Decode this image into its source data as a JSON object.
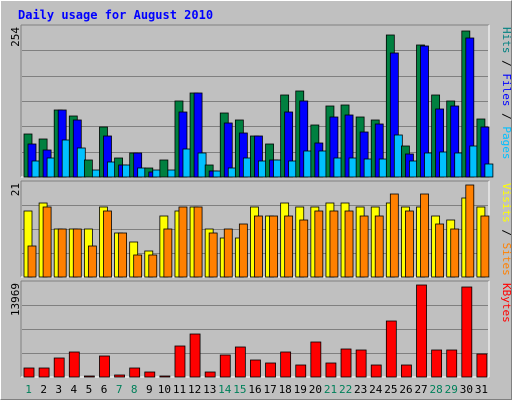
{
  "chart_data": {
    "type": "bar",
    "title": "Daily usage for August 2010",
    "categories": [
      "1",
      "2",
      "3",
      "4",
      "5",
      "6",
      "7",
      "8",
      "9",
      "10",
      "11",
      "12",
      "13",
      "14",
      "15",
      "16",
      "17",
      "18",
      "19",
      "20",
      "21",
      "22",
      "23",
      "24",
      "25",
      "26",
      "27",
      "28",
      "29",
      "30",
      "31"
    ],
    "weekend_days": [
      "1",
      "7",
      "8",
      "14",
      "15",
      "21",
      "22",
      "28",
      "29"
    ],
    "panels": [
      {
        "id": "hits",
        "ymax_label": "254",
        "ymax": 254,
        "axis_labels": [
          {
            "text": "Hits",
            "color": "#008080"
          },
          {
            "text": "Files",
            "color": "#0000ff"
          },
          {
            "text": "Pages",
            "color": "#00c0ff"
          }
        ],
        "series": [
          {
            "name": "Hits",
            "color": "#008040",
            "values": [
              73,
              65,
              115,
              104,
              29,
              86,
              33,
              41,
              16,
              29,
              131,
              144,
              21,
              109,
              98,
              71,
              56,
              140,
              147,
              90,
              121,
              123,
              103,
              98,
              244,
              54,
              227,
              140,
              131,
              250,
              99
            ]
          },
          {
            "name": "Files",
            "color": "#0000ff",
            "values": [
              56,
              46,
              115,
              98,
              0,
              70,
              20,
              41,
              8,
              0,
              111,
              144,
              10,
              92,
              75,
              71,
              29,
              112,
              130,
              58,
              103,
              106,
              77,
              91,
              213,
              39,
              225,
              116,
              121,
              238,
              86
            ]
          },
          {
            "name": "Pages",
            "color": "#00c0ff",
            "values": [
              28,
              33,
              63,
              50,
              12,
              25,
              20,
              16,
              12,
              12,
              48,
              42,
              10,
              16,
              33,
              27,
              30,
              27,
              45,
              44,
              33,
              33,
              31,
              31,
              72,
              28,
              42,
              43,
              42,
              53,
              23
            ]
          }
        ]
      },
      {
        "id": "visits",
        "ymax_label": "21",
        "ymax": 21,
        "axis_labels": [
          {
            "text": "Visits",
            "color": "#ffff00"
          },
          {
            "text": "Sites",
            "color": "#ff8000"
          }
        ],
        "series": [
          {
            "name": "Visits",
            "color": "#ffff00",
            "values": [
              15,
              17,
              11,
              11,
              11,
              16,
              10,
              8,
              6,
              14,
              15,
              16,
              11,
              9,
              9,
              16,
              14,
              17,
              16,
              16,
              17,
              17,
              16,
              16,
              17,
              16,
              16,
              14,
              13,
              18,
              16
            ]
          },
          {
            "name": "Sites",
            "color": "#ff8000",
            "values": [
              7,
              16,
              11,
              11,
              7,
              15,
              10,
              5,
              5,
              11,
              16,
              16,
              10,
              11,
              12,
              14,
              14,
              14,
              13,
              15,
              15,
              15,
              14,
              14,
              19,
              15,
              19,
              12,
              11,
              21,
              14
            ]
          }
        ]
      },
      {
        "id": "kbytes",
        "ymax_label": "13969",
        "ymax": 13969,
        "axis_labels": [
          {
            "text": "KBytes",
            "color": "#ff0000"
          }
        ],
        "series": [
          {
            "name": "KBytes",
            "color": "#ff0000",
            "values": [
              1440,
              1440,
              2900,
              3860,
              200,
              3200,
              360,
              1410,
              720,
              210,
              4700,
              6470,
              770,
              3270,
              4550,
              2520,
              2160,
              3860,
              1790,
              5240,
              2160,
              4250,
              4170,
              1790,
              8520,
              1790,
              14040,
              4070,
              4070,
              13700,
              3500
            ]
          }
        ]
      }
    ]
  }
}
